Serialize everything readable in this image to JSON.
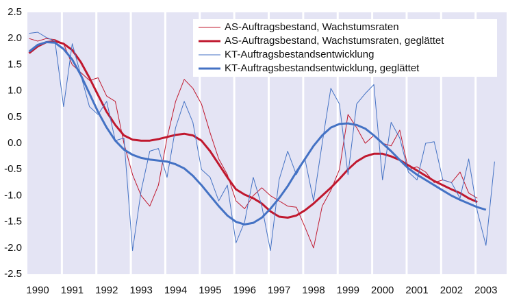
{
  "chart_data": {
    "type": "line",
    "x": [
      1989.75,
      1990,
      1990.25,
      1990.5,
      1990.75,
      1991,
      1991.25,
      1991.5,
      1991.75,
      1992,
      1992.25,
      1992.5,
      1992.75,
      1993,
      1993.25,
      1993.5,
      1993.75,
      1994,
      1994.25,
      1994.5,
      1994.75,
      1995,
      1995.25,
      1995.5,
      1995.75,
      1996,
      1996.25,
      1996.5,
      1996.75,
      1997,
      1997.25,
      1997.5,
      1997.75,
      1998,
      1998.25,
      1998.5,
      1998.75,
      1999,
      1999.25,
      1999.5,
      1999.75,
      2000,
      2000.25,
      2000.5,
      2000.75,
      2001,
      2001.25,
      2001.5,
      2001.75,
      2002,
      2002.25,
      2002.5,
      2002.75,
      2003,
      2003.25
    ],
    "series": [
      {
        "name": "AS-Auftragsbestand, Wachstumsraten",
        "color": "#c0182e",
        "width": 1,
        "values": [
          2.0,
          1.95,
          2.0,
          1.98,
          1.9,
          1.5,
          1.35,
          1.2,
          1.25,
          0.9,
          0.8,
          0.0,
          -0.6,
          -1.0,
          -1.2,
          -0.8,
          0.1,
          0.8,
          1.22,
          1.05,
          0.75,
          0.2,
          -0.3,
          -0.6,
          -1.1,
          -1.25,
          -1.0,
          -0.85,
          -1.0,
          -1.1,
          -1.2,
          -1.22,
          -1.6,
          -2.0,
          -1.2,
          -0.9,
          -0.5,
          0.55,
          0.3,
          0.0,
          0.15,
          0.0,
          -0.05,
          0.25,
          -0.5,
          -0.45,
          -0.55,
          -0.75,
          -0.7,
          -0.75,
          -0.55,
          -0.95,
          -1.05,
          null,
          null
        ]
      },
      {
        "name": "AS-Auftragsbestand, Wachstumsraten, geglättet",
        "color": "#c0182e",
        "width": 3,
        "values": [
          1.72,
          1.85,
          1.93,
          1.95,
          1.9,
          1.78,
          1.55,
          1.25,
          0.92,
          0.6,
          0.35,
          0.15,
          0.07,
          0.05,
          0.05,
          0.08,
          0.12,
          0.16,
          0.18,
          0.15,
          0.05,
          -0.15,
          -0.4,
          -0.65,
          -0.88,
          -0.98,
          -1.05,
          -1.15,
          -1.3,
          -1.4,
          -1.42,
          -1.38,
          -1.28,
          -1.15,
          -1.0,
          -0.85,
          -0.68,
          -0.5,
          -0.35,
          -0.25,
          -0.2,
          -0.2,
          -0.25,
          -0.32,
          -0.42,
          -0.52,
          -0.62,
          -0.72,
          -0.8,
          -0.88,
          -0.95,
          -1.05,
          -1.12,
          null,
          null
        ]
      },
      {
        "name": "KT-Auftragsbestandsentwicklung",
        "color": "#4472c4",
        "width": 1,
        "values": [
          2.1,
          2.12,
          2.02,
          1.95,
          0.7,
          1.9,
          1.3,
          0.7,
          0.55,
          0.8,
          0.05,
          0.1,
          -2.05,
          -0.9,
          -0.15,
          -0.1,
          -0.65,
          0.3,
          0.8,
          0.4,
          -0.5,
          -0.65,
          -1.1,
          -0.8,
          -1.9,
          -1.5,
          -0.65,
          -1.2,
          -2.05,
          -0.7,
          -0.15,
          -0.6,
          -0.3,
          -1.1,
          0.0,
          1.05,
          0.75,
          -0.6,
          0.75,
          0.95,
          1.12,
          -0.7,
          0.4,
          0.1,
          -0.55,
          -0.7,
          0.0,
          0.03,
          -0.7,
          -0.75,
          -1.05,
          -0.3,
          -1.3,
          -1.95,
          -0.35
        ]
      },
      {
        "name": "KT-Auftragsbestandsentwicklung, geglättet",
        "color": "#4472c4",
        "width": 3,
        "values": [
          1.75,
          1.88,
          1.93,
          1.92,
          1.8,
          1.6,
          1.3,
          0.95,
          0.6,
          0.3,
          0.05,
          -0.12,
          -0.22,
          -0.28,
          -0.31,
          -0.33,
          -0.35,
          -0.4,
          -0.48,
          -0.62,
          -0.8,
          -1.0,
          -1.2,
          -1.38,
          -1.5,
          -1.55,
          -1.52,
          -1.42,
          -1.25,
          -1.05,
          -0.82,
          -0.55,
          -0.3,
          -0.05,
          0.15,
          0.3,
          0.37,
          0.38,
          0.35,
          0.28,
          0.15,
          0.0,
          -0.15,
          -0.32,
          -0.48,
          -0.6,
          -0.7,
          -0.8,
          -0.9,
          -1.0,
          -1.08,
          -1.15,
          -1.22,
          -1.27,
          null
        ]
      }
    ],
    "xlim": [
      1989.7,
      2003.6
    ],
    "xticks": [
      1990,
      1991,
      1992,
      1993,
      1994,
      1995,
      1996,
      1997,
      1998,
      1999,
      2000,
      2001,
      2002,
      2003
    ],
    "ylim": [
      -2.5,
      2.5
    ],
    "yticks": [
      {
        "value": 2.5,
        "label": "2.5"
      },
      {
        "value": 2,
        "label": "2.0"
      },
      {
        "value": 1.5,
        "label": "1.5"
      },
      {
        "value": 1,
        "label": "1.0"
      },
      {
        "value": 0.5,
        "label": "0.5"
      },
      {
        "value": 0,
        "label": "0.0"
      },
      {
        "value": -0.5,
        "label": "-0.5"
      },
      {
        "value": -1,
        "label": "-1.0"
      },
      {
        "value": -1.5,
        "label": "-1.5"
      },
      {
        "value": -2,
        "label": "-2.0"
      },
      {
        "value": -2.5,
        "label": "-2.5"
      }
    ],
    "legend": "top-right"
  }
}
